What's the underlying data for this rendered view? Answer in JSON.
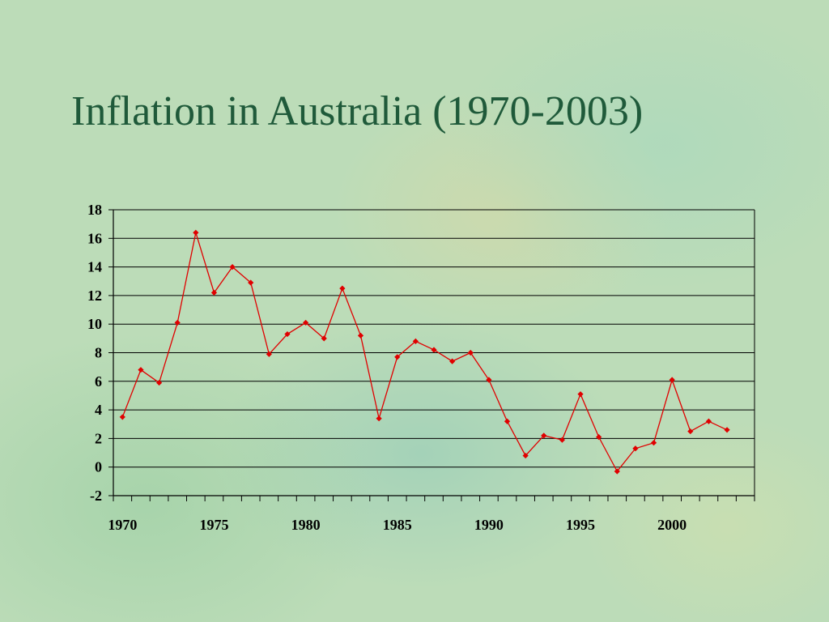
{
  "slide": {
    "title": "Inflation in Australia (1970-2003)"
  },
  "colors": {
    "title": "#1f5a3a",
    "series": "#e00000",
    "axis": "#000000",
    "grid": "#000000"
  },
  "chart_data": {
    "type": "line",
    "title": "Inflation in Australia (1970-2003)",
    "xlabel": "",
    "ylabel": "",
    "grid": true,
    "legend": "none",
    "xlim": [
      1969.5,
      2004.5
    ],
    "ylim": [
      -2,
      18
    ],
    "x_ticks": [
      1970,
      1975,
      1980,
      1985,
      1990,
      1995,
      2000
    ],
    "y_ticks": [
      -2,
      0,
      2,
      4,
      6,
      8,
      10,
      12,
      14,
      16,
      18
    ],
    "series": [
      {
        "marker": "diamond",
        "x": [
          1970,
          1971,
          1972,
          1973,
          1974,
          1975,
          1976,
          1977,
          1978,
          1979,
          1980,
          1981,
          1982,
          1983,
          1984,
          1985,
          1986,
          1987,
          1988,
          1989,
          1990,
          1991,
          1992,
          1993,
          1994,
          1995,
          1996,
          1997,
          1998,
          1999,
          2000,
          2001,
          2002,
          2003
        ],
        "values": [
          3.5,
          6.8,
          5.9,
          10.1,
          16.4,
          12.2,
          14.0,
          12.9,
          7.9,
          9.3,
          10.1,
          9.0,
          12.5,
          9.2,
          3.4,
          7.7,
          8.8,
          8.2,
          7.4,
          8.0,
          6.1,
          3.2,
          0.8,
          2.2,
          1.9,
          5.1,
          2.1,
          -0.3,
          1.3,
          1.7,
          6.1,
          2.5,
          3.2,
          2.6
        ]
      }
    ]
  }
}
